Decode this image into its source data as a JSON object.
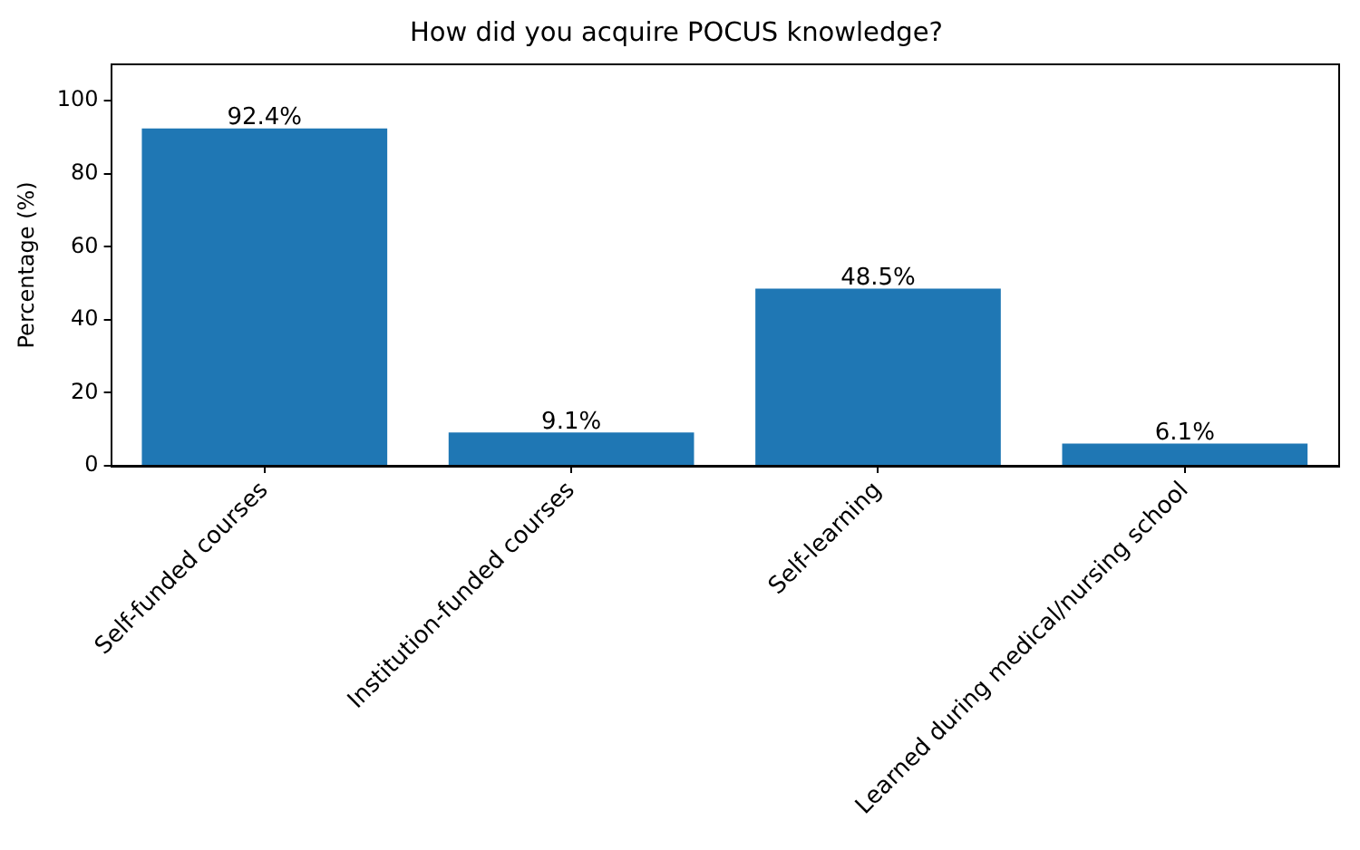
{
  "chart_data": {
    "type": "bar",
    "title": "How did you acquire POCUS knowledge?",
    "ylabel": "Percentage (%)",
    "categories": [
      "Self-funded courses",
      "Institution-funded courses",
      "Self-learning",
      "Learned during medical/nursing school"
    ],
    "values": [
      92.4,
      9.1,
      48.5,
      6.1
    ],
    "color": "#1f77b4",
    "value_labels": [
      "92.4%",
      "9.1%",
      "48.5%",
      "6.1%"
    ],
    "ylim": [
      0,
      110
    ],
    "yticks": [
      0,
      20,
      40,
      60,
      80,
      100
    ]
  }
}
